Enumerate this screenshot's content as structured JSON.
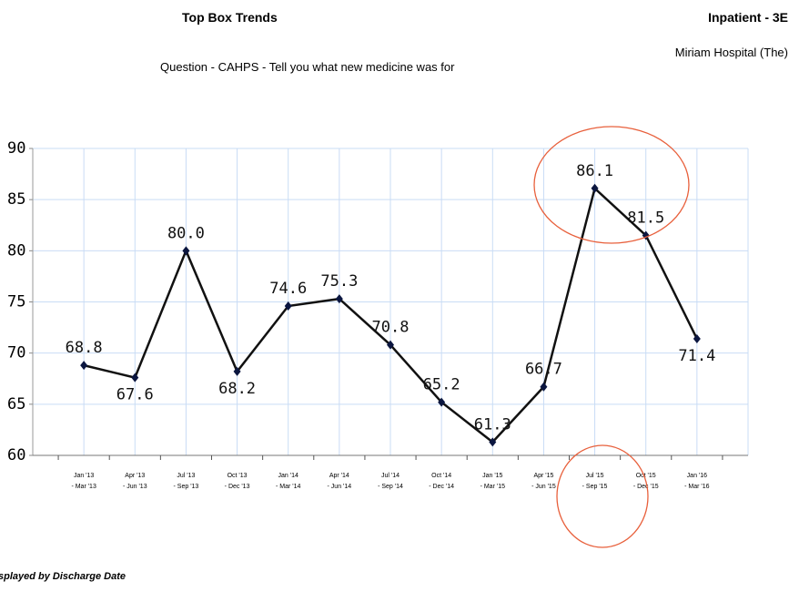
{
  "chart_data": {
    "type": "line",
    "title": "Top Box Trends",
    "header_right": "Inpatient - 3E",
    "organization": "Miriam Hospital (The)",
    "subtitle": "Question - CAHPS - Tell you what new medicine was for",
    "footer": "splayed by Discharge Date",
    "categories": [
      [
        "Jan '13",
        "- Mar '13"
      ],
      [
        "Apr '13",
        "- Jun '13"
      ],
      [
        "Jul '13",
        "- Sep '13"
      ],
      [
        "Oct '13",
        "- Dec '13"
      ],
      [
        "Jan '14",
        "- Mar '14"
      ],
      [
        "Apr '14",
        "- Jun '14"
      ],
      [
        "Jul '14",
        "- Sep '14"
      ],
      [
        "Oct '14",
        "- Dec '14"
      ],
      [
        "Jan '15",
        "- Mar '15"
      ],
      [
        "Apr '15",
        "- Jun '15"
      ],
      [
        "Jul '15",
        "- Sep '15"
      ],
      [
        "Oct '15",
        "- Dec '15"
      ],
      [
        "Jan '16",
        "- Mar '16"
      ]
    ],
    "values": [
      68.8,
      67.6,
      80.0,
      68.2,
      74.6,
      75.3,
      70.8,
      65.2,
      61.3,
      66.7,
      86.1,
      81.5,
      71.4
    ],
    "value_labels": [
      "68.8",
      "67.6",
      "80.0",
      "68.2",
      "74.6",
      "75.3",
      "70.8",
      "65.2",
      "61.3",
      "66.7",
      "86.1",
      "81.5",
      "71.4"
    ],
    "color": "#111111",
    "ylim": [
      60,
      90
    ],
    "yticks": [
      60,
      65,
      70,
      75,
      80,
      85,
      90
    ],
    "grid": true
  }
}
